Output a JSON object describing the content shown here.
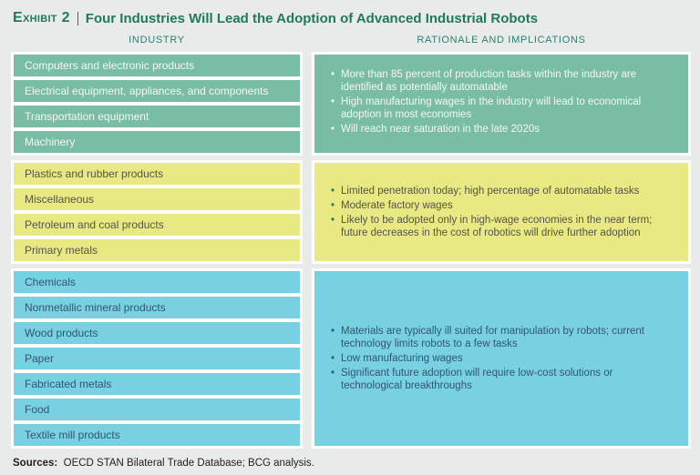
{
  "title": {
    "exhibit_label": "Exhibit 2",
    "text": "Four Industries Will Lead the Adoption of Advanced Industrial Robots"
  },
  "columns": {
    "industry_header": "INDUSTRY",
    "rationale_header": "RATIONALE AND IMPLICATIONS"
  },
  "groups": [
    {
      "id": "leading-adopters",
      "colors": {
        "row_bg": "#79bda5",
        "row_text": "#f2f8f4",
        "box_text": "#f2f8f4",
        "bullet": "#f2f8f4"
      },
      "industries": [
        "Computers and electronic products",
        "Electrical equipment, appliances, and components",
        "Transportation equipment",
        "Machinery"
      ],
      "bullets": [
        "More than 85 percent of production tasks within the industry are identified as potentially automatable",
        "High manufacturing wages in the industry will lead to economical adoption in most economies",
        "Will reach near saturation in the late 2020s"
      ]
    },
    {
      "id": "moderate-adopters",
      "colors": {
        "row_bg": "#e8e982",
        "row_text": "#55554a",
        "box_text": "#55554a",
        "bullet": "#1e7c58"
      },
      "industries": [
        "Plastics and rubber products",
        "Miscellaneous",
        "Petroleum and coal products",
        "Primary metals"
      ],
      "bullets": [
        "Limited penetration today; high percentage of automatable tasks",
        "Moderate factory wages",
        "Likely to be adopted only in high-wage economies in the near term; future decreases in the cost of robotics will drive further adoption"
      ]
    },
    {
      "id": "slow-adopters",
      "colors": {
        "row_bg": "#78d0e3",
        "row_text": "#31566f",
        "box_text": "#31566f",
        "bullet": "#31566f"
      },
      "industries": [
        "Chemicals",
        "Nonmetallic mineral products",
        "Wood products",
        "Paper",
        "Fabricated metals",
        "Food",
        "Textile mill products"
      ],
      "bullets": [
        "Materials are typically ill suited for manipulation by robots; current technology limits robots to a few tasks",
        "Low manufacturing wages",
        "Significant future adoption will require low-cost solutions or technological breakthroughs"
      ]
    }
  ],
  "footer": {
    "sources_label": "Sources:",
    "sources_text": "OECD STAN Bilateral Trade Database; BCG analysis."
  }
}
